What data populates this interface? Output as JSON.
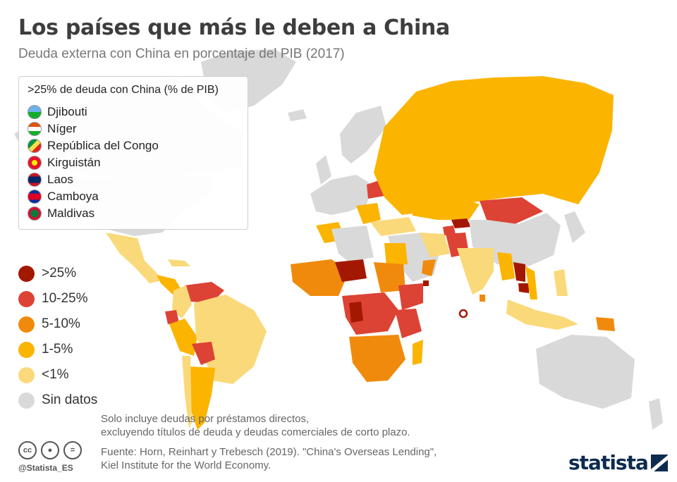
{
  "title": "Los países que más le deben a China",
  "subtitle": "Deuda externa con China en porcentaje del PIB (2017)",
  "highlight_box": {
    "heading": ">25% de deuda con China (% de PIB)",
    "countries": [
      {
        "name": "Djibouti",
        "flag": "flag-djibouti-icon"
      },
      {
        "name": "Níger",
        "flag": "flag-niger-icon"
      },
      {
        "name": "República del Congo",
        "flag": "flag-congo-icon"
      },
      {
        "name": "Kirguistán",
        "flag": "flag-kyrgyzstan-icon"
      },
      {
        "name": "Laos",
        "flag": "flag-laos-icon"
      },
      {
        "name": "Camboya",
        "flag": "flag-cambodia-icon"
      },
      {
        "name": "Maldivas",
        "flag": "flag-maldives-icon"
      }
    ]
  },
  "legend": [
    {
      "label": ">25%",
      "color": "#a31800"
    },
    {
      "label": "10-25%",
      "color": "#dc4335"
    },
    {
      "label": "5-10%",
      "color": "#f08a0c"
    },
    {
      "label": "1-5%",
      "color": "#fbb400"
    },
    {
      "label": "<1%",
      "color": "#fad97a"
    },
    {
      "label": "Sin datos",
      "color": "#d9d9d9"
    }
  ],
  "note": {
    "line1": "Solo incluye deudas por préstamos directos,",
    "line2": "excluyendo títulos de deuda y deudas comerciales de corto plazo."
  },
  "source": {
    "line1": "Fuente: Horn, Reinhart y Trebesch (2019). \"China's Overseas Lending\",",
    "line2": "Kiel Institute for the World Economy."
  },
  "footer": {
    "handle": "@Statista_ES",
    "license_icons": [
      "cc-icon",
      "by-icon",
      "equals-icon"
    ],
    "logo_text": "statista"
  }
}
